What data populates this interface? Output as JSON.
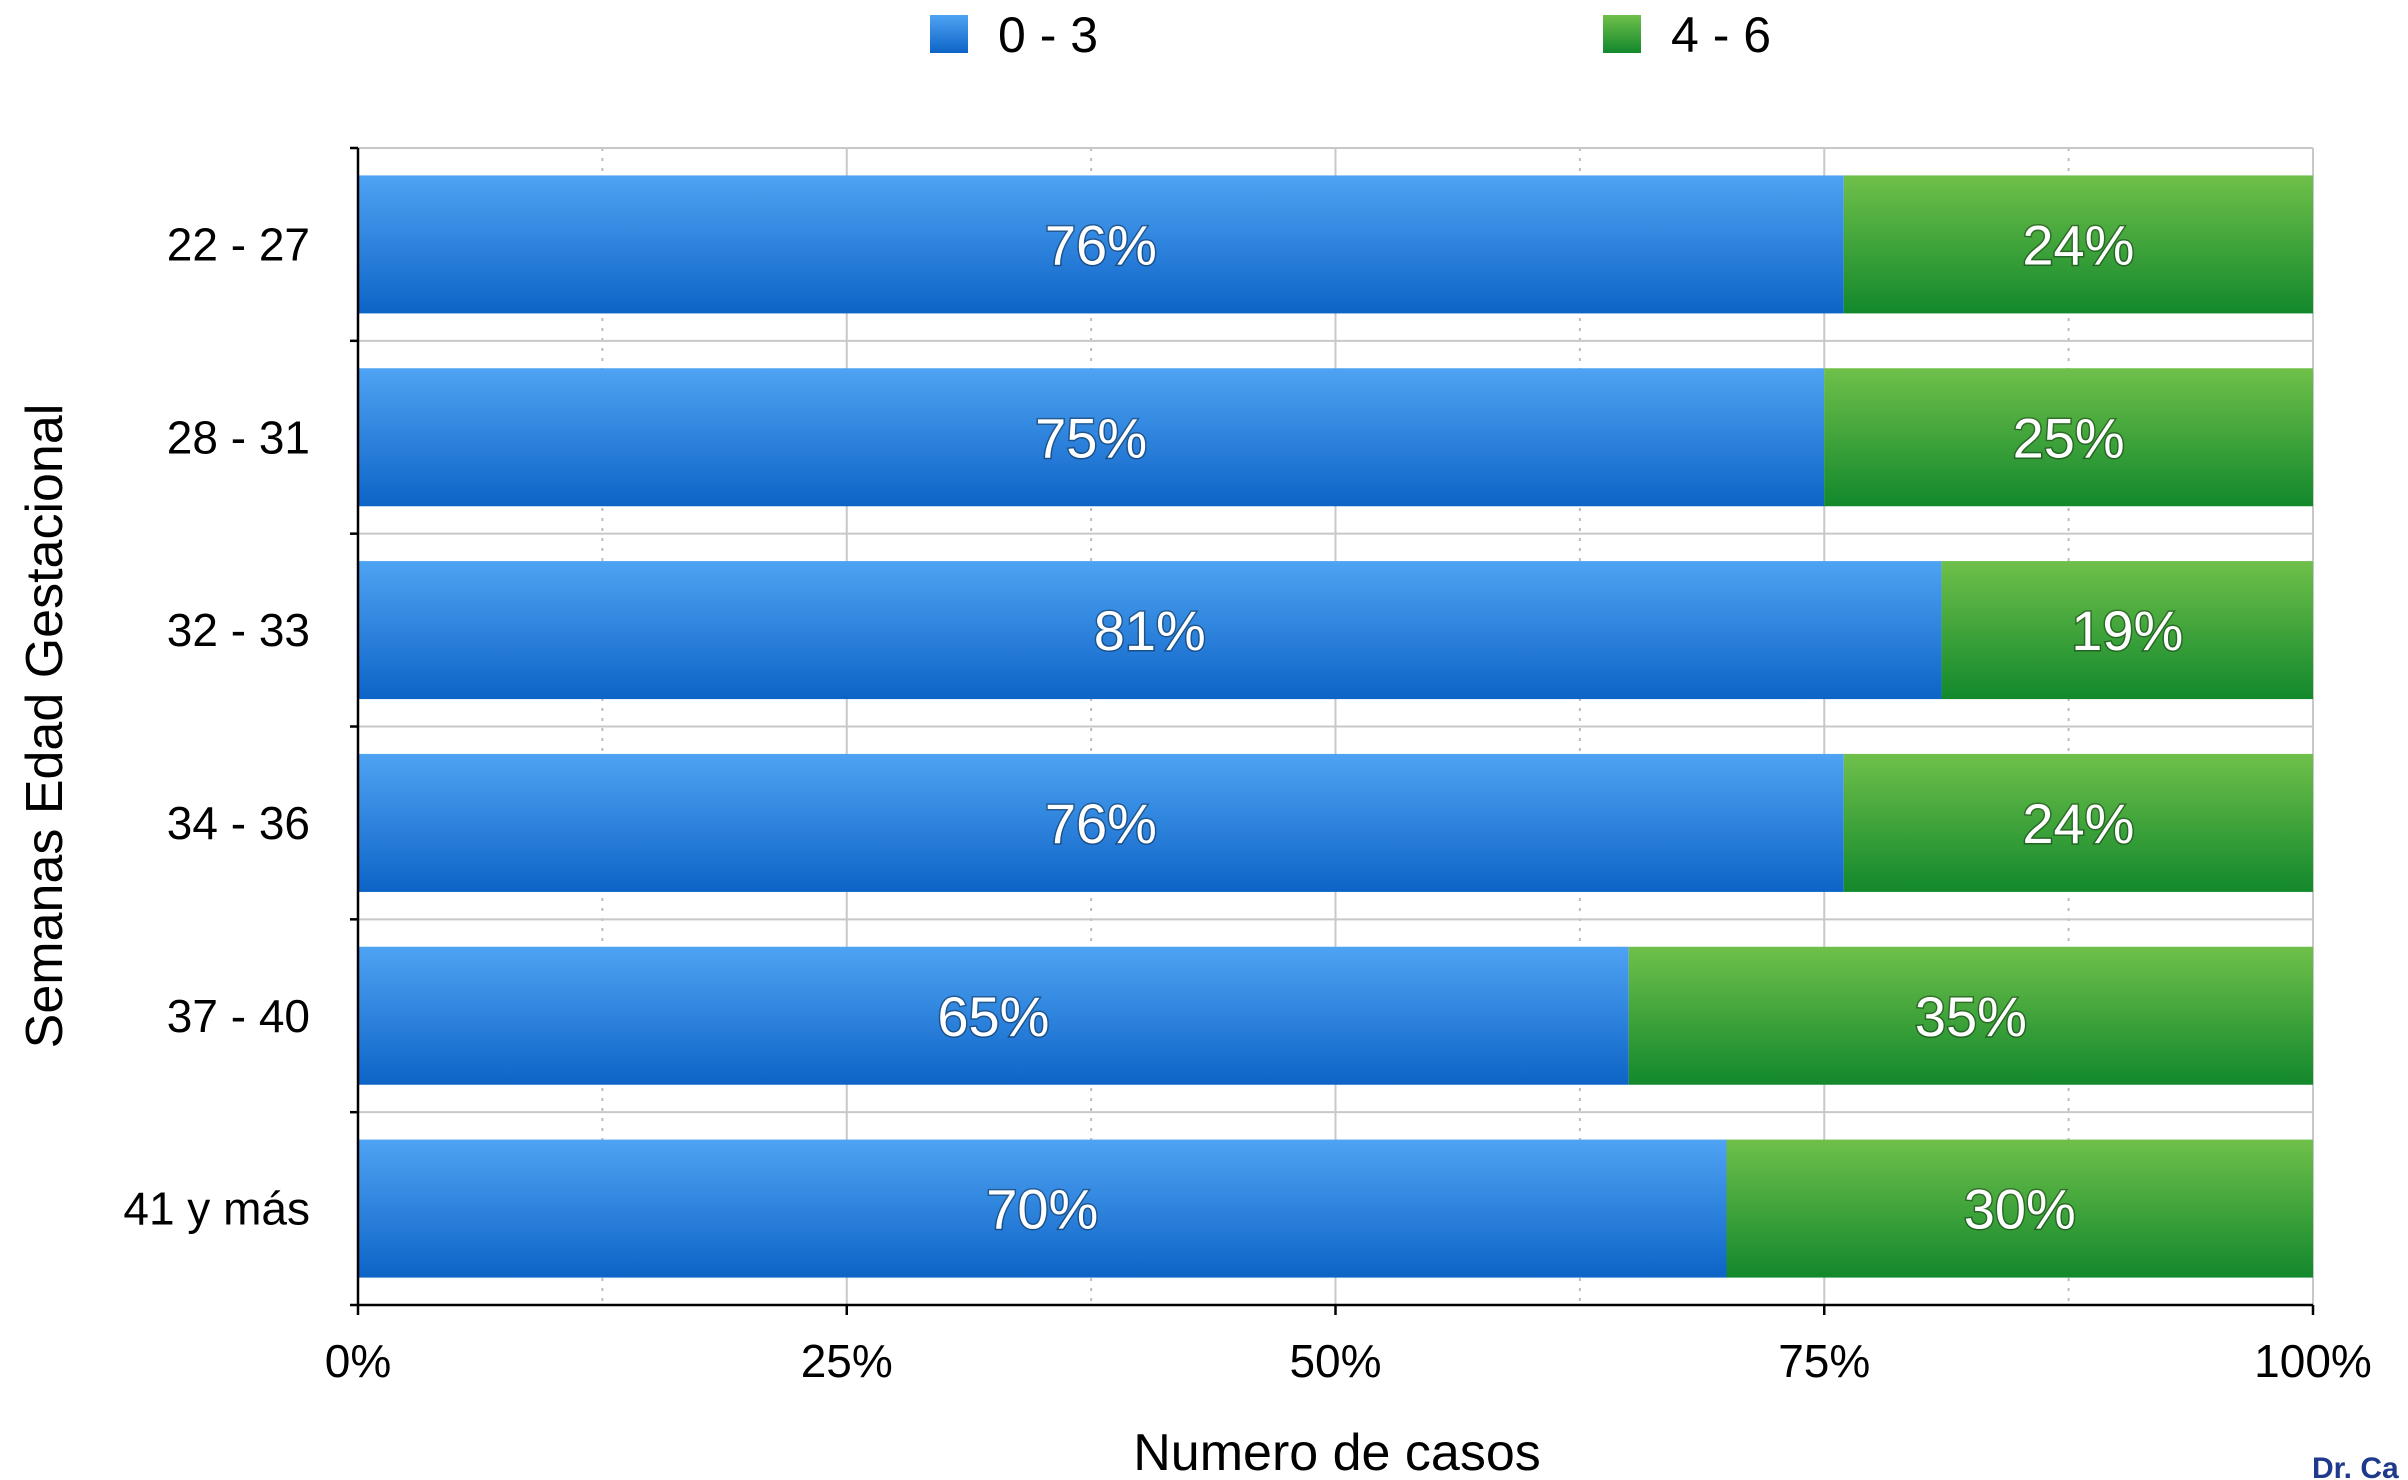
{
  "chart_data": {
    "type": "bar",
    "orientation": "horizontal",
    "stacked": true,
    "normalized": true,
    "categories": [
      "22 - 27",
      "28 - 31",
      "32 - 33",
      "34 - 36",
      "37 - 40",
      "41 y más"
    ],
    "series": [
      {
        "name": "0 - 3",
        "color": "#1a78dc",
        "values": [
          76,
          75,
          81,
          76,
          65,
          70
        ],
        "labels": [
          "76%",
          "75%",
          "81%",
          "76%",
          "65%",
          "70%"
        ]
      },
      {
        "name": "4 - 6",
        "color": "#34a335",
        "values": [
          24,
          25,
          19,
          24,
          35,
          30
        ],
        "labels": [
          "24%",
          "25%",
          "19%",
          "24%",
          "35%",
          "30%"
        ]
      }
    ],
    "xlim": [
      0,
      100
    ],
    "x_ticks": [
      "0%",
      "25%",
      "50%",
      "75%",
      "100%"
    ],
    "xlabel": "Numero de casos",
    "ylabel": "Semanas Edad Gestacional",
    "grid": true,
    "legend_position": "top-center",
    "credit": "Dr. Ca"
  }
}
